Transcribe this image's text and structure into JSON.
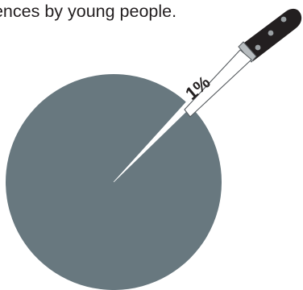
{
  "caption": "fences by young people.",
  "colors": {
    "pie_fill": "#68787f",
    "slice_fill": "#ffffff",
    "text": "#231f20",
    "knife_handle": "#231f20",
    "knife_rivet": "#9aa0a3",
    "knife_blade": "#ffffff",
    "knife_outline": "#555a5e"
  },
  "icons": {
    "knife": "knife-icon"
  },
  "chart_data": {
    "type": "pie",
    "title": "",
    "slices": [
      {
        "label": "1%",
        "value": 1,
        "color": "#ffffff"
      },
      {
        "label": "",
        "value": 99,
        "color": "#68787f"
      }
    ],
    "legend": "none",
    "annotation": "1%"
  }
}
